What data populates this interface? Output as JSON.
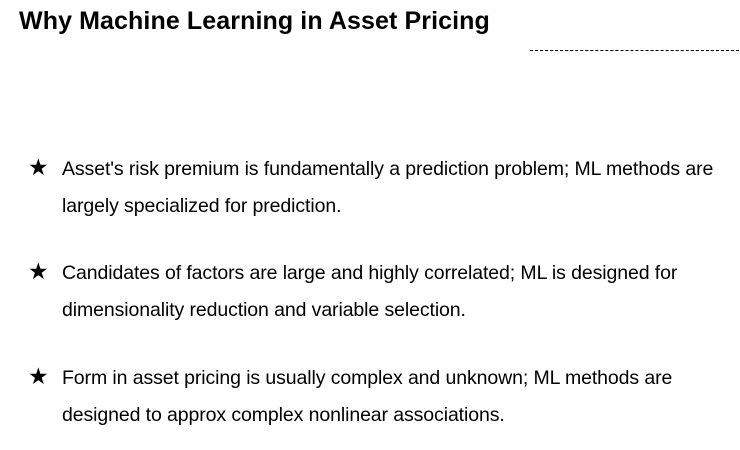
{
  "title": "Why Machine Learning in Asset Pricing",
  "bullets": [
    {
      "icon": "star-icon",
      "text": "Asset's risk premium is fundamentally a prediction problem; ML methods are largely specialized for prediction."
    },
    {
      "icon": "star-icon",
      "text": "Candidates of factors are large and highly correlated; ML is designed for dimensionality reduction and variable selection."
    },
    {
      "icon": "star-icon",
      "text": "Form in asset pricing is usually complex and unknown; ML methods are designed to approx complex nonlinear associations."
    }
  ]
}
